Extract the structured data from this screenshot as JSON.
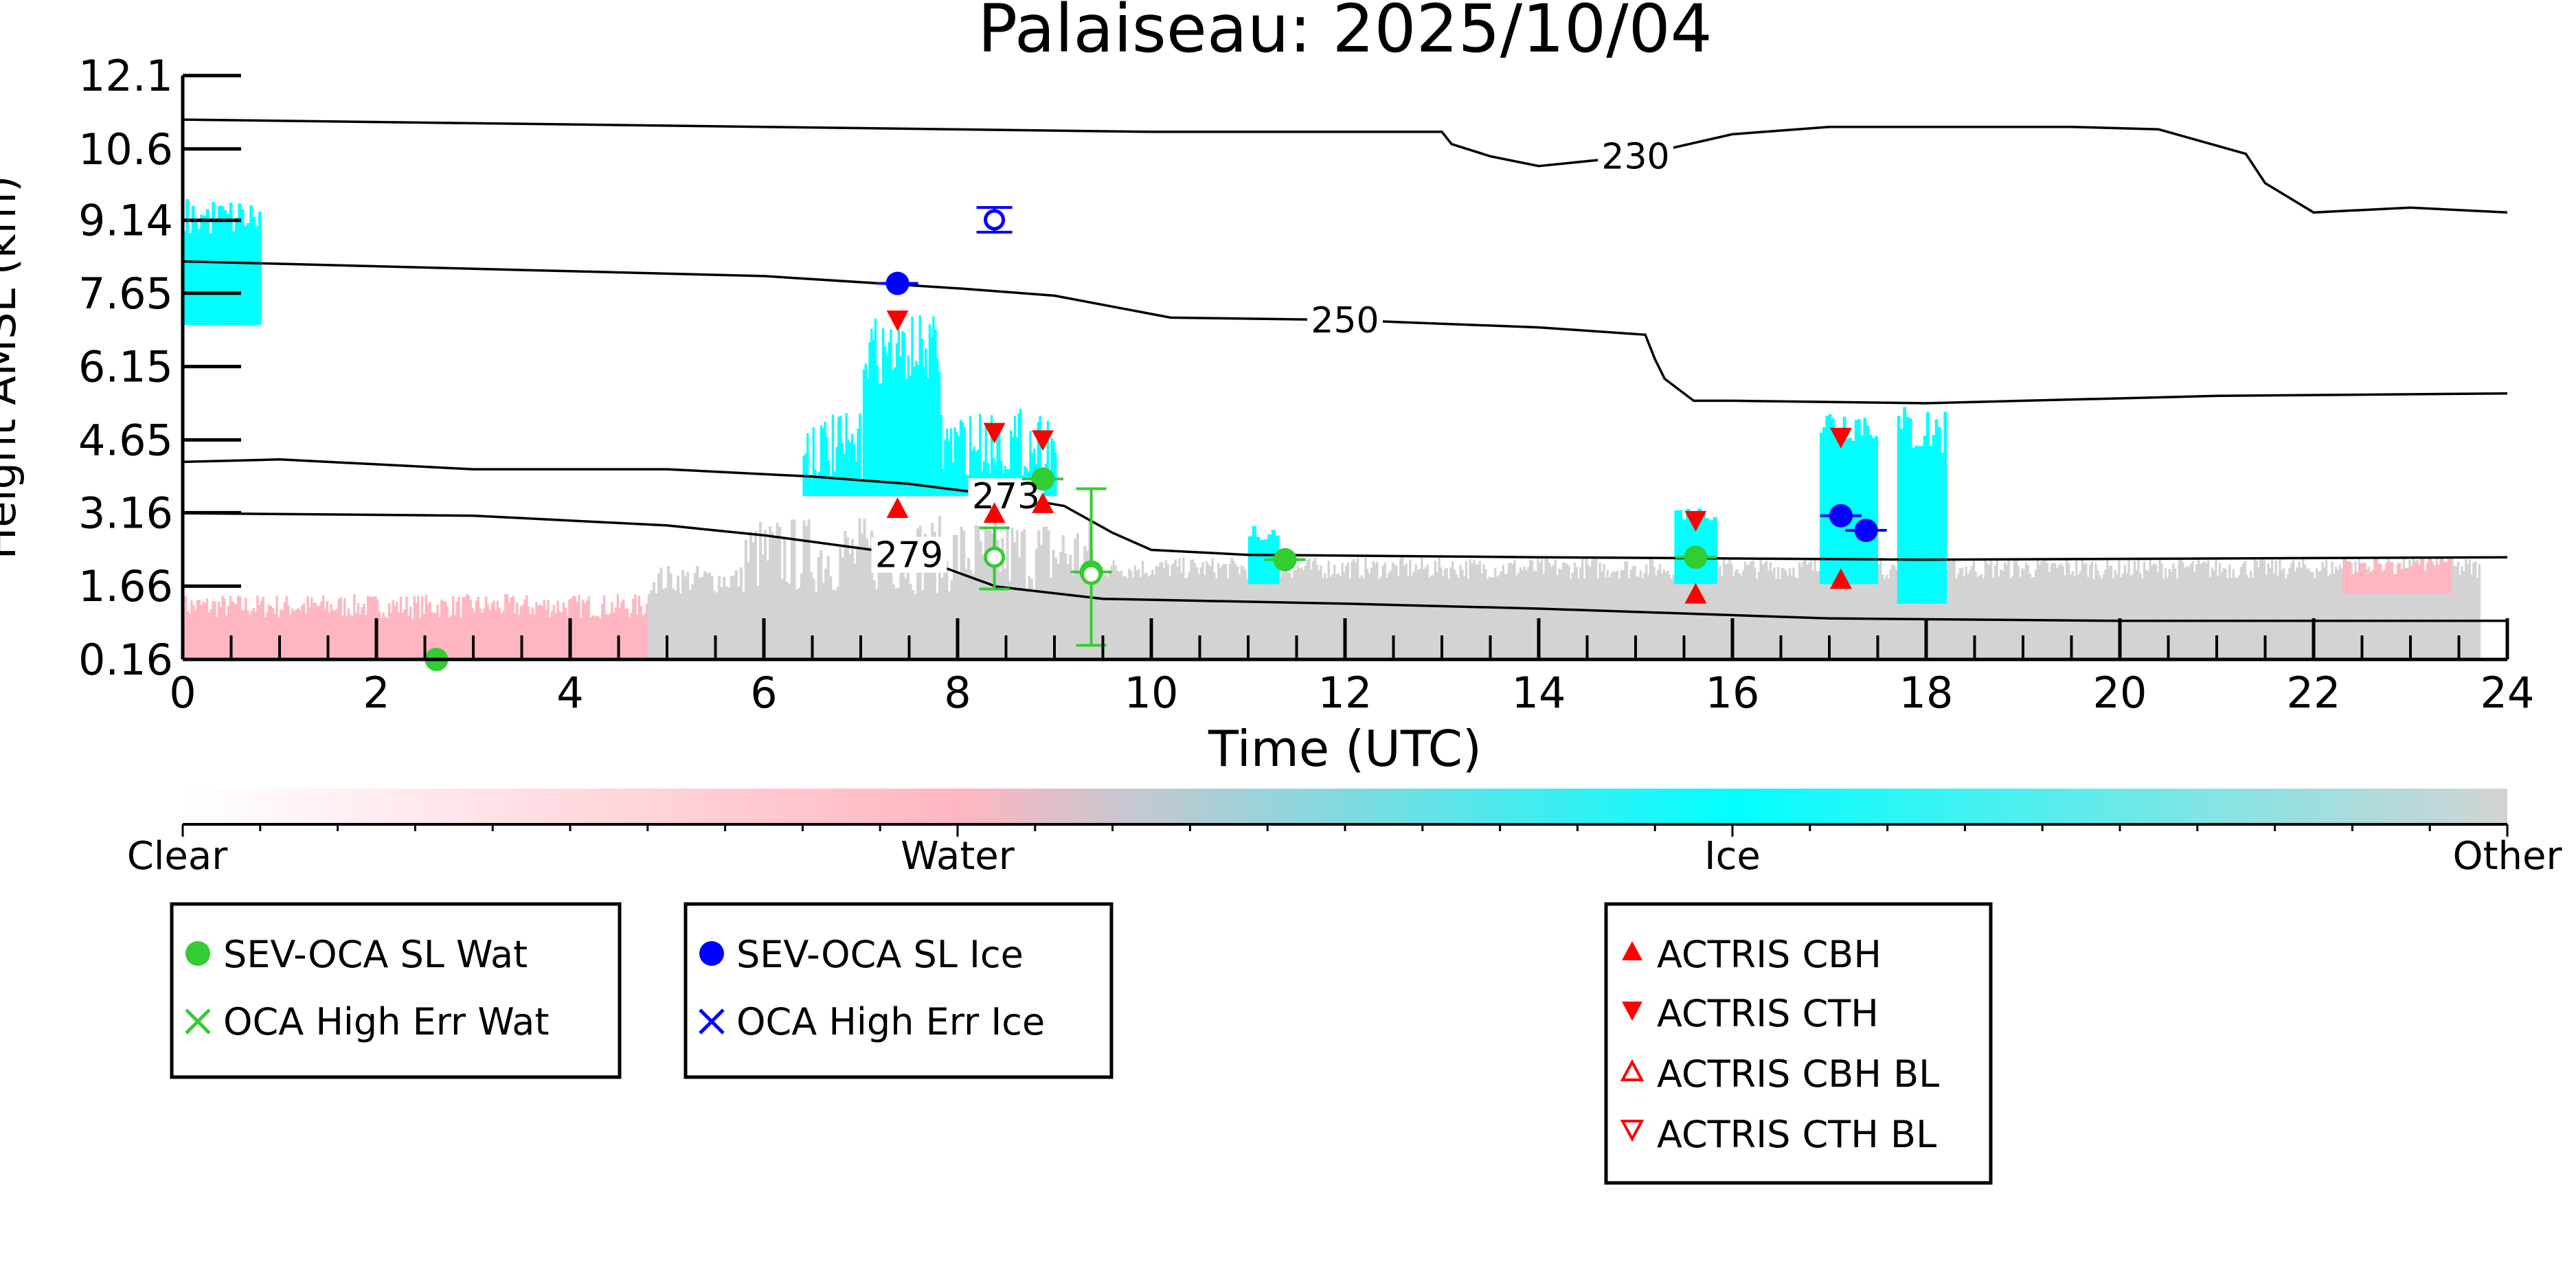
{
  "chart_data": {
    "type": "scatter",
    "title": "Palaiseau: 2025/10/04",
    "xlabel": "Time (UTC)",
    "ylabel": "Height AMSL (km)",
    "xlim": [
      0,
      24
    ],
    "ylim": [
      0.16,
      12.1
    ],
    "x_ticks": [
      0,
      2,
      4,
      6,
      8,
      10,
      12,
      14,
      16,
      18,
      20,
      22,
      24
    ],
    "y_ticks": [
      "0.16",
      "1.66",
      "3.16",
      "4.65",
      "6.15",
      "7.65",
      "9.14",
      "10.6",
      "12.1"
    ],
    "y_tick_values": [
      0.16,
      1.66,
      3.16,
      4.65,
      6.15,
      7.65,
      9.14,
      10.6,
      12.1
    ],
    "colorbar": {
      "labels": [
        "Clear",
        "Water",
        "Ice",
        "Other"
      ],
      "colors": [
        "#ffffff",
        "#ffb6c1",
        "#00ffff",
        "#d3d3d3"
      ]
    },
    "temperature_contours": [
      {
        "label": "230",
        "points": [
          [
            0,
            11.2
          ],
          [
            2,
            11.15
          ],
          [
            6,
            11.05
          ],
          [
            10,
            10.95
          ],
          [
            13,
            10.95
          ],
          [
            13.1,
            10.7
          ],
          [
            13.5,
            10.45
          ],
          [
            14,
            10.25
          ],
          [
            15,
            10.45
          ],
          [
            16,
            10.9
          ],
          [
            17,
            11.05
          ],
          [
            18,
            11.05
          ],
          [
            19.5,
            11.05
          ],
          [
            20.4,
            11.0
          ],
          [
            21.3,
            10.5
          ],
          [
            21.5,
            9.9
          ],
          [
            22,
            9.3
          ],
          [
            23,
            9.4
          ],
          [
            24,
            9.3
          ]
        ]
      },
      {
        "label": "250",
        "points": [
          [
            0,
            8.3
          ],
          [
            2,
            8.2
          ],
          [
            4,
            8.1
          ],
          [
            6,
            8.0
          ],
          [
            8,
            7.75
          ],
          [
            9,
            7.6
          ],
          [
            10.2,
            7.15
          ],
          [
            12,
            7.1
          ],
          [
            14,
            6.95
          ],
          [
            15.1,
            6.8
          ],
          [
            15.2,
            6.3
          ],
          [
            15.3,
            5.9
          ],
          [
            15.6,
            5.45
          ],
          [
            16,
            5.45
          ],
          [
            18,
            5.4
          ],
          [
            21,
            5.55
          ],
          [
            24,
            5.6
          ]
        ]
      },
      {
        "label": "273",
        "points": [
          [
            0,
            4.2
          ],
          [
            1,
            4.25
          ],
          [
            3,
            4.05
          ],
          [
            5,
            4.05
          ],
          [
            6.5,
            3.9
          ],
          [
            7.5,
            3.75
          ],
          [
            8.5,
            3.5
          ],
          [
            9.1,
            3.3
          ],
          [
            9.6,
            2.75
          ],
          [
            10,
            2.4
          ],
          [
            11,
            2.3
          ],
          [
            14,
            2.25
          ],
          [
            18,
            2.2
          ],
          [
            24,
            2.25
          ]
        ]
      },
      {
        "label": "279",
        "points": [
          [
            0,
            3.15
          ],
          [
            3,
            3.1
          ],
          [
            5,
            2.9
          ],
          [
            6,
            2.7
          ],
          [
            7.5,
            2.3
          ],
          [
            8.4,
            1.65
          ],
          [
            9.5,
            1.4
          ],
          [
            12,
            1.3
          ],
          [
            14,
            1.2
          ],
          [
            17,
            1.0
          ],
          [
            20,
            0.95
          ],
          [
            24,
            0.95
          ]
        ]
      }
    ],
    "series": [
      {
        "name": "SEV-OCA SL Wat",
        "marker": "filled-circle",
        "color": "#33cc33",
        "x": [
          2.62,
          8.88,
          9.38,
          11.38,
          15.62
        ],
        "y": [
          0.16,
          3.85,
          1.95,
          2.2,
          2.25
        ]
      },
      {
        "name": "OCA High Err Wat",
        "marker": "open-circle-errorbar",
        "color": "#33cc33",
        "x": [
          8.38,
          9.38
        ],
        "y": [
          2.25,
          1.9
        ],
        "yerr_low": [
          1.6,
          0.45
        ],
        "yerr_high": [
          2.85,
          3.65
        ]
      },
      {
        "name": "SEV-OCA SL Ice",
        "marker": "filled-circle",
        "color": "#0000ff",
        "x": [
          7.38,
          17.12,
          17.38
        ],
        "y": [
          7.85,
          3.1,
          2.8
        ]
      },
      {
        "name": "OCA High Err Ice",
        "marker": "open-circle",
        "color": "#0000ff",
        "x": [
          8.38
        ],
        "y": [
          9.15
        ]
      },
      {
        "name": "ACTRIS CBH",
        "marker": "triangle-up",
        "color": "#ff0000",
        "x": [
          7.38,
          8.38,
          8.88,
          15.62,
          17.12
        ],
        "y": [
          3.25,
          3.15,
          3.35,
          1.5,
          1.8
        ]
      },
      {
        "name": "ACTRIS CTH",
        "marker": "triangle-down",
        "color": "#ff0000",
        "x": [
          7.38,
          8.38,
          8.88,
          15.62,
          17.12
        ],
        "y": [
          7.1,
          4.8,
          4.65,
          3.0,
          4.7
        ]
      }
    ],
    "legend": [
      {
        "group": "water",
        "items": [
          "SEV-OCA SL Wat",
          "OCA High Err Wat"
        ]
      },
      {
        "group": "ice",
        "items": [
          "SEV-OCA SL Ice",
          "OCA High Err Ice"
        ]
      },
      {
        "group": "actris",
        "items": [
          "ACTRIS CBH",
          "ACTRIS CTH",
          "ACTRIS CBH BL",
          "ACTRIS CTH BL"
        ]
      }
    ],
    "legend_placement": "below",
    "grid": false
  }
}
